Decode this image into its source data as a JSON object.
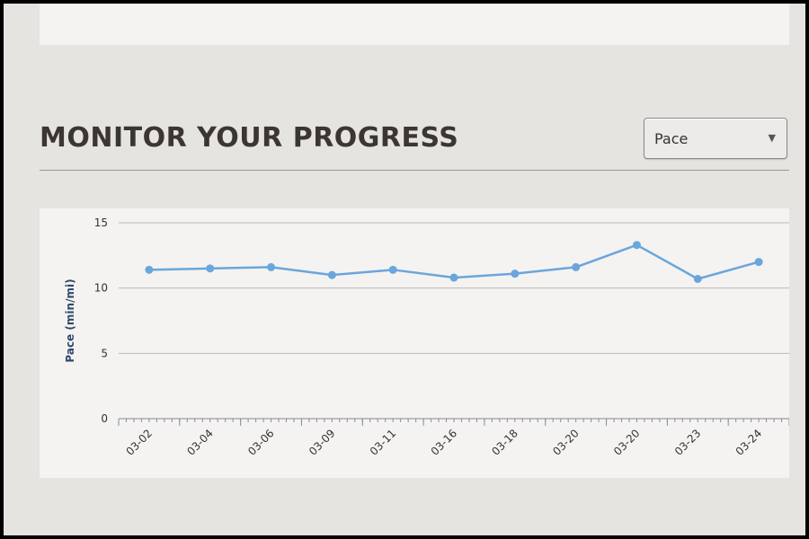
{
  "section": {
    "title": "MONITOR YOUR PROGRESS"
  },
  "metric_select": {
    "selected": "Pace"
  },
  "chart_data": {
    "type": "line",
    "title": "",
    "xlabel": "",
    "ylabel": "Pace (min/mi)",
    "categories": [
      "03-02",
      "03-04",
      "03-06",
      "03-09",
      "03-11",
      "03-16",
      "03-18",
      "03-20",
      "03-20",
      "03-23",
      "03-24"
    ],
    "series": [
      {
        "values": [
          11.4,
          11.5,
          11.6,
          11.0,
          11.4,
          10.8,
          11.1,
          11.6,
          13.3,
          10.7,
          12.0
        ],
        "color": "#6aa6dc"
      }
    ],
    "ylim": [
      0,
      15
    ],
    "yticks": [
      0,
      5,
      10,
      15
    ],
    "grid": true,
    "legend": "none"
  }
}
